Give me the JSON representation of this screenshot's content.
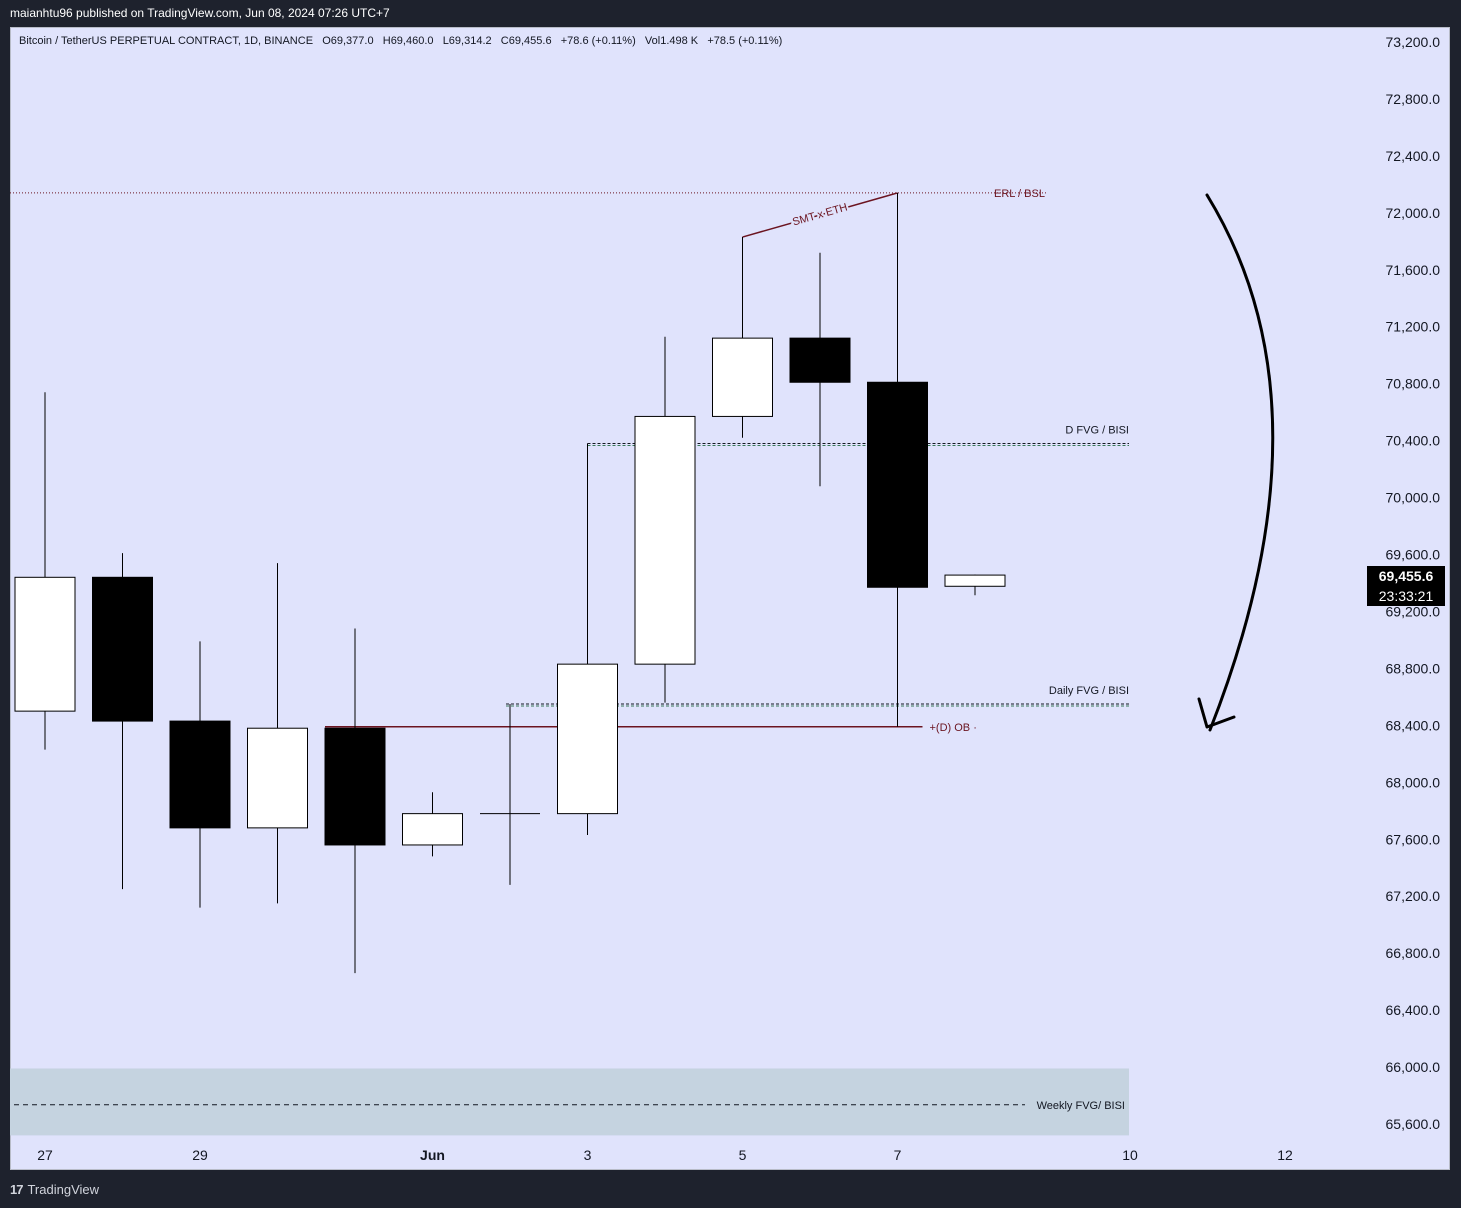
{
  "header": {
    "published": "maianhtu96 published on TradingView.com, Jun 08, 2024 07:26 UTC+7"
  },
  "symbol": {
    "name": "Bitcoin / TetherUS PERPETUAL CONTRACT, 1D, BINANCE",
    "open": "O69,377.0",
    "high": "H69,460.0",
    "low": "L69,314.2",
    "close": "C69,455.6",
    "change": "+78.6 (+0.11%)",
    "volume": "Vol1.498 K",
    "vol_change": "+78.5 (+0.11%)"
  },
  "last_price": {
    "price": "69,455.6",
    "countdown": "23:33:21"
  },
  "footer": {
    "brand": "TradingView",
    "mark": "17"
  },
  "colors": {
    "background": "#e0e3fc",
    "bull_body": "#ffffff",
    "bear_body": "#000000",
    "annotation_red": "#6b1420",
    "weekly_zone": "#c5d3e0"
  },
  "chart_data": {
    "type": "candlestick",
    "y_axis": {
      "side": "right",
      "ylim": [
        65400,
        73400
      ],
      "ticks": [
        "73,200.0",
        "72,800.0",
        "72,400.0",
        "72,000.0",
        "71,600.0",
        "71,200.0",
        "70,800.0",
        "70,400.0",
        "70,000.0",
        "69,600.0",
        "69,200.0",
        "68,800.0",
        "68,400.0",
        "68,000.0",
        "67,600.0",
        "67,200.0",
        "66,800.0",
        "66,400.0",
        "66,000.0",
        "65,600.0"
      ]
    },
    "x_axis": {
      "labels": [
        {
          "day": 0,
          "text": "27"
        },
        {
          "day": 2,
          "text": "29"
        },
        {
          "day": 5,
          "text": "Jun"
        },
        {
          "day": 7,
          "text": "3"
        },
        {
          "day": 9,
          "text": "5"
        },
        {
          "day": 11,
          "text": "7"
        },
        {
          "day": 14,
          "text": "10"
        },
        {
          "day": 16,
          "text": "12"
        }
      ]
    },
    "candles": [
      {
        "date": "May 27",
        "open": 68500,
        "high": 70740,
        "low": 68230,
        "close": 69440
      },
      {
        "date": "May 28",
        "open": 69440,
        "high": 69610,
        "low": 67250,
        "close": 68430
      },
      {
        "date": "May 29",
        "open": 68430,
        "high": 68990,
        "low": 67120,
        "close": 67680
      },
      {
        "date": "May 30",
        "open": 67680,
        "high": 69540,
        "low": 67150,
        "close": 68380
      },
      {
        "date": "May 31",
        "open": 68380,
        "high": 69080,
        "low": 66660,
        "close": 67560
      },
      {
        "date": "Jun 1",
        "open": 67560,
        "high": 67930,
        "low": 67480,
        "close": 67780
      },
      {
        "date": "Jun 2",
        "open": 67780,
        "high": 68550,
        "low": 67280,
        "close": 67780
      },
      {
        "date": "Jun 3",
        "open": 67780,
        "high": 70380,
        "low": 67630,
        "close": 68830
      },
      {
        "date": "Jun 4",
        "open": 68830,
        "high": 71130,
        "low": 68560,
        "close": 70570
      },
      {
        "date": "Jun 5",
        "open": 70570,
        "high": 71830,
        "low": 70420,
        "close": 71120
      },
      {
        "date": "Jun 6",
        "open": 71120,
        "high": 71720,
        "low": 70080,
        "close": 70810
      },
      {
        "date": "Jun 7",
        "open": 70810,
        "high": 72140,
        "low": 68390,
        "close": 69370
      },
      {
        "date": "Jun 8",
        "open": 69377,
        "high": 69460,
        "low": 69314,
        "close": 69455.6
      }
    ],
    "annotations": {
      "erl_bsl": {
        "label": "ERL / BSL",
        "price": 72140
      },
      "smt": {
        "label": "SMT x ETH",
        "from_price": 71830,
        "to_price": 72140
      },
      "d_fvg": {
        "label": "D FVG / BISI",
        "price": 70380
      },
      "daily_fvg": {
        "label": "Daily FVG / BISI",
        "price": 68550
      },
      "ob": {
        "label": "+(D) OB",
        "price": 68390
      },
      "weekly_fvg": {
        "label": "Weekly FVG/ BISI",
        "mid_price": 65735,
        "top": 65990,
        "bottom": 65520
      },
      "arrow": {
        "direction": "down"
      }
    }
  }
}
